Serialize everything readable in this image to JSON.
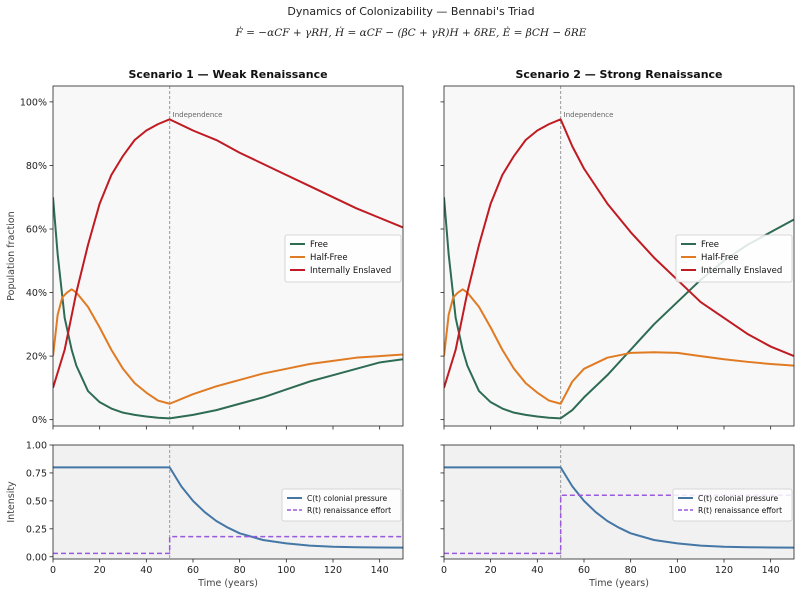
{
  "figure": {
    "title": "Dynamics of Colonizability — Bennabi's Triad",
    "equation": "Ḟ = −αCF + γRH,    Ḣ = αCF − (βC + γR)H + δRE,    Ė = βCH − δRE"
  },
  "colors": {
    "free": "#2e6b53",
    "half_free": "#e07b24",
    "enslaved": "#c01b22",
    "colonial": "#4477a6",
    "renaissance": "#9b59e0",
    "upper_bg": "#f8f8f8",
    "lower_bg": "#f1f1f1"
  },
  "chart_data": [
    {
      "type": "line",
      "panel": "top-left",
      "title": "Scenario 1 — Weak Renaissance",
      "ylabel": "Population fraction",
      "xlabel": "",
      "xlim": [
        0,
        150
      ],
      "ylim": [
        -0.02,
        1.05
      ],
      "x_ticks": [
        0,
        20,
        40,
        60,
        80,
        100,
        120,
        140
      ],
      "y_ticks": [
        0,
        0.2,
        0.4,
        0.6,
        0.8,
        1.0
      ],
      "y_tick_labels": [
        "0%",
        "20%",
        "40%",
        "60%",
        "80%",
        "100%"
      ],
      "show_x_tick_labels": false,
      "show_y_tick_labels": true,
      "annotation": {
        "x": 50,
        "text": "Independence"
      },
      "legend_position": "center-right",
      "grid": false,
      "series": [
        {
          "name": "Free",
          "color_key": "free",
          "x": [
            0,
            2,
            5,
            8,
            10,
            15,
            20,
            25,
            30,
            35,
            40,
            45,
            50,
            60,
            70,
            80,
            90,
            100,
            110,
            120,
            130,
            140,
            150
          ],
          "y": [
            0.7,
            0.52,
            0.32,
            0.22,
            0.17,
            0.09,
            0.055,
            0.035,
            0.022,
            0.015,
            0.01,
            0.006,
            0.004,
            0.015,
            0.03,
            0.05,
            0.07,
            0.095,
            0.12,
            0.14,
            0.16,
            0.18,
            0.19
          ]
        },
        {
          "name": "Half-Free",
          "color_key": "half_free",
          "x": [
            0,
            2,
            4,
            6,
            8,
            10,
            15,
            20,
            25,
            30,
            35,
            40,
            45,
            50,
            60,
            70,
            80,
            90,
            100,
            110,
            120,
            130,
            140,
            150
          ],
          "y": [
            0.2,
            0.33,
            0.385,
            0.4,
            0.41,
            0.4,
            0.355,
            0.29,
            0.22,
            0.16,
            0.115,
            0.085,
            0.06,
            0.05,
            0.08,
            0.105,
            0.125,
            0.145,
            0.16,
            0.175,
            0.185,
            0.195,
            0.2,
            0.205
          ]
        },
        {
          "name": "Internally Enslaved",
          "color_key": "enslaved",
          "x": [
            0,
            5,
            10,
            15,
            20,
            25,
            30,
            35,
            40,
            45,
            50,
            60,
            70,
            80,
            90,
            100,
            110,
            120,
            130,
            140,
            150
          ],
          "y": [
            0.1,
            0.22,
            0.4,
            0.55,
            0.68,
            0.77,
            0.83,
            0.88,
            0.91,
            0.93,
            0.945,
            0.91,
            0.88,
            0.84,
            0.805,
            0.77,
            0.735,
            0.7,
            0.665,
            0.635,
            0.605
          ]
        }
      ]
    },
    {
      "type": "line",
      "panel": "top-right",
      "title": "Scenario 2 — Strong Renaissance",
      "ylabel": "",
      "xlabel": "",
      "xlim": [
        0,
        150
      ],
      "ylim": [
        -0.02,
        1.05
      ],
      "x_ticks": [
        0,
        20,
        40,
        60,
        80,
        100,
        120,
        140
      ],
      "y_ticks": [
        0,
        0.2,
        0.4,
        0.6,
        0.8,
        1.0
      ],
      "y_tick_labels": [
        "0%",
        "20%",
        "40%",
        "60%",
        "80%",
        "100%"
      ],
      "show_x_tick_labels": false,
      "show_y_tick_labels": false,
      "annotation": {
        "x": 50,
        "text": "Independence"
      },
      "legend_position": "center-right",
      "grid": false,
      "series": [
        {
          "name": "Free",
          "color_key": "free",
          "x": [
            0,
            2,
            5,
            8,
            10,
            15,
            20,
            25,
            30,
            35,
            40,
            45,
            50,
            55,
            60,
            70,
            80,
            90,
            100,
            110,
            120,
            130,
            140,
            150
          ],
          "y": [
            0.7,
            0.52,
            0.32,
            0.22,
            0.17,
            0.09,
            0.055,
            0.035,
            0.022,
            0.015,
            0.01,
            0.006,
            0.004,
            0.03,
            0.07,
            0.14,
            0.22,
            0.3,
            0.37,
            0.44,
            0.5,
            0.55,
            0.59,
            0.63
          ]
        },
        {
          "name": "Half-Free",
          "color_key": "half_free",
          "x": [
            0,
            2,
            4,
            6,
            8,
            10,
            15,
            20,
            25,
            30,
            35,
            40,
            45,
            50,
            55,
            60,
            70,
            80,
            90,
            100,
            110,
            120,
            130,
            140,
            150
          ],
          "y": [
            0.2,
            0.33,
            0.385,
            0.4,
            0.41,
            0.4,
            0.355,
            0.29,
            0.22,
            0.16,
            0.115,
            0.085,
            0.06,
            0.05,
            0.12,
            0.16,
            0.195,
            0.21,
            0.212,
            0.21,
            0.2,
            0.19,
            0.182,
            0.175,
            0.17
          ]
        },
        {
          "name": "Internally Enslaved",
          "color_key": "enslaved",
          "x": [
            0,
            5,
            10,
            15,
            20,
            25,
            30,
            35,
            40,
            45,
            50,
            55,
            60,
            70,
            80,
            90,
            100,
            110,
            120,
            130,
            140,
            150
          ],
          "y": [
            0.1,
            0.22,
            0.4,
            0.55,
            0.68,
            0.77,
            0.83,
            0.88,
            0.91,
            0.93,
            0.945,
            0.86,
            0.79,
            0.68,
            0.59,
            0.51,
            0.44,
            0.37,
            0.32,
            0.27,
            0.23,
            0.2
          ]
        }
      ]
    },
    {
      "type": "line",
      "panel": "bottom-left",
      "title": "",
      "ylabel": "Intensity",
      "xlabel": "Time (years)",
      "xlim": [
        0,
        150
      ],
      "ylim": [
        -0.02,
        1.0
      ],
      "x_ticks": [
        0,
        20,
        40,
        60,
        80,
        100,
        120,
        140
      ],
      "y_ticks": [
        0,
        0.25,
        0.5,
        0.75,
        1.0
      ],
      "y_tick_labels": [
        "0.00",
        "0.25",
        "0.50",
        "0.75",
        "1.00"
      ],
      "show_x_tick_labels": true,
      "show_y_tick_labels": true,
      "annotation": {
        "x": 50,
        "text": ""
      },
      "legend_position": "center-right",
      "grid": false,
      "series": [
        {
          "name": "C(t) colonial pressure",
          "color_key": "colonial",
          "dashed": false,
          "x": [
            0,
            50,
            55,
            60,
            65,
            70,
            75,
            80,
            90,
            100,
            110,
            120,
            130,
            140,
            150
          ],
          "y": [
            0.8,
            0.8,
            0.63,
            0.5,
            0.4,
            0.32,
            0.26,
            0.21,
            0.15,
            0.12,
            0.1,
            0.09,
            0.085,
            0.083,
            0.082
          ]
        },
        {
          "name": "R(t) renaissance effort",
          "color_key": "renaissance",
          "dashed": true,
          "x": [
            0,
            50,
            50,
            150
          ],
          "y": [
            0.03,
            0.03,
            0.18,
            0.18
          ]
        }
      ]
    },
    {
      "type": "line",
      "panel": "bottom-right",
      "title": "",
      "ylabel": "",
      "xlabel": "Time (years)",
      "xlim": [
        0,
        150
      ],
      "ylim": [
        -0.02,
        1.0
      ],
      "x_ticks": [
        0,
        20,
        40,
        60,
        80,
        100,
        120,
        140
      ],
      "y_ticks": [
        0,
        0.25,
        0.5,
        0.75,
        1.0
      ],
      "y_tick_labels": [
        "0.00",
        "0.25",
        "0.50",
        "0.75",
        "1.00"
      ],
      "show_x_tick_labels": true,
      "show_y_tick_labels": false,
      "annotation": {
        "x": 50,
        "text": ""
      },
      "legend_position": "center-right",
      "grid": false,
      "series": [
        {
          "name": "C(t) colonial pressure",
          "color_key": "colonial",
          "dashed": false,
          "x": [
            0,
            50,
            55,
            60,
            65,
            70,
            75,
            80,
            90,
            100,
            110,
            120,
            130,
            140,
            150
          ],
          "y": [
            0.8,
            0.8,
            0.63,
            0.5,
            0.4,
            0.32,
            0.26,
            0.21,
            0.15,
            0.12,
            0.1,
            0.09,
            0.085,
            0.083,
            0.082
          ]
        },
        {
          "name": "R(t) renaissance effort",
          "color_key": "renaissance",
          "dashed": true,
          "x": [
            0,
            50,
            50,
            150
          ],
          "y": [
            0.03,
            0.03,
            0.55,
            0.55
          ]
        }
      ]
    }
  ]
}
